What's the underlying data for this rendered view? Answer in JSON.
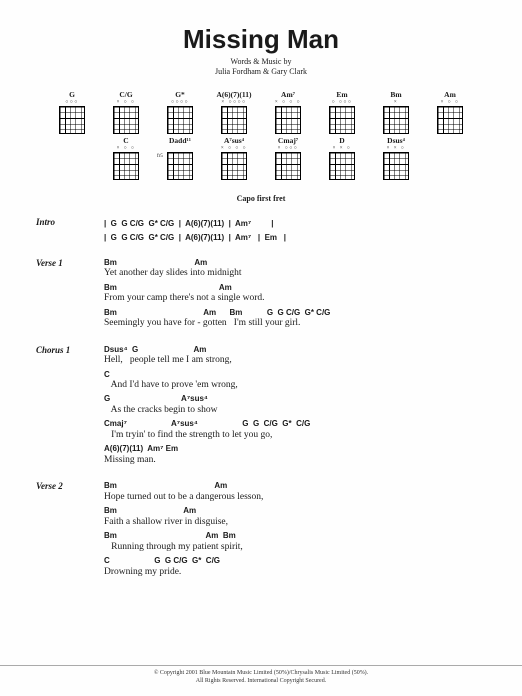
{
  "title": "Missing Man",
  "subtitle": "Words & Music by",
  "authors": "Julia Fordham & Gary Clark",
  "capo": "Capo first fret",
  "chord_diagrams": [
    {
      "name": "G",
      "top": "○○○",
      "fret": ""
    },
    {
      "name": "C/G",
      "top": "×  ○ ○",
      "fret": ""
    },
    {
      "name": "G*",
      "top": "○○○○",
      "fret": ""
    },
    {
      "name": "A(6)(7)(11)",
      "top": "× ○○○○",
      "fret": ""
    },
    {
      "name": "Am⁷",
      "top": "× ○ ○ ○",
      "fret": ""
    },
    {
      "name": "Em",
      "top": "○  ○○○",
      "fret": ""
    },
    {
      "name": "Bm",
      "top": "×",
      "fret": ""
    },
    {
      "name": "Am",
      "top": "× ○   ○",
      "fret": ""
    },
    {
      "name": "C",
      "top": "×   ○ ○",
      "fret": ""
    },
    {
      "name": "Dadd¹¹",
      "top": "",
      "fret": "fr5"
    },
    {
      "name": "A⁷sus⁴",
      "top": "× ○ ○ ○",
      "fret": ""
    },
    {
      "name": "Cmaj⁷",
      "top": "×  ○○○",
      "fret": ""
    },
    {
      "name": "D",
      "top": "× × ○",
      "fret": ""
    },
    {
      "name": "Dsus⁴",
      "top": "× × ○",
      "fret": ""
    }
  ],
  "sections": [
    {
      "label": "Intro",
      "type": "intro",
      "lines": [
        "|  G  G C/G  G* C/G  |  A(6)(7)(11)  |  Am⁷         |",
        "|  G  G C/G  G* C/G  |  A(6)(7)(11)  |  Am⁷   |  Em   |"
      ]
    },
    {
      "label": "Verse 1",
      "type": "verse",
      "pairs": [
        {
          "chords": "Bm                                   Am",
          "lyrics": "Yet another day slides into midnight"
        },
        {
          "chords": "Bm                                              Am",
          "lyrics": "From your camp there's not a single word."
        },
        {
          "chords": "Bm                                       Am      Bm           G  G C/G  G* C/G",
          "lyrics": "Seemingly you have for - gotten   I'm still your girl."
        }
      ]
    },
    {
      "label": "Chorus 1",
      "type": "verse",
      "pairs": [
        {
          "chords": "Dsus⁴  G                         Am",
          "lyrics": "Hell,   people tell me I am strong,"
        },
        {
          "chords": "C",
          "lyrics": "   And I'd have to prove 'em wrong,"
        },
        {
          "chords": "G                                A⁷sus⁴",
          "lyrics": "   As the cracks begin to show"
        },
        {
          "chords": "Cmaj⁷                    A⁷sus⁴                    G  G  C/G  G*  C/G",
          "lyrics": "   I'm tryin' to find the strength to let you go,"
        },
        {
          "chords": "A(6)(7)(11)  Am⁷ Em",
          "lyrics": "Missing man."
        }
      ]
    },
    {
      "label": "Verse 2",
      "type": "verse",
      "pairs": [
        {
          "chords": "Bm                                            Am",
          "lyrics": "Hope turned out to be a dangerous lesson,"
        },
        {
          "chords": "Bm                              Am",
          "lyrics": "Faith a shallow river in disguise,"
        },
        {
          "chords": "Bm                                        Am  Bm",
          "lyrics": "   Running through my patient spirit,"
        },
        {
          "chords": "C                    G  G C/G  G*  C/G",
          "lyrics": "Drowning my pride."
        }
      ]
    }
  ],
  "copyright": {
    "line1": "© Copyright 2001 Blue Mountain Music Limited (50%)/Chrysalis Music Limited (50%).",
    "line2": "All Rights Reserved. International Copyright Secured."
  },
  "colors": {
    "bg": "#fefefe",
    "text": "#1a1a1a"
  }
}
